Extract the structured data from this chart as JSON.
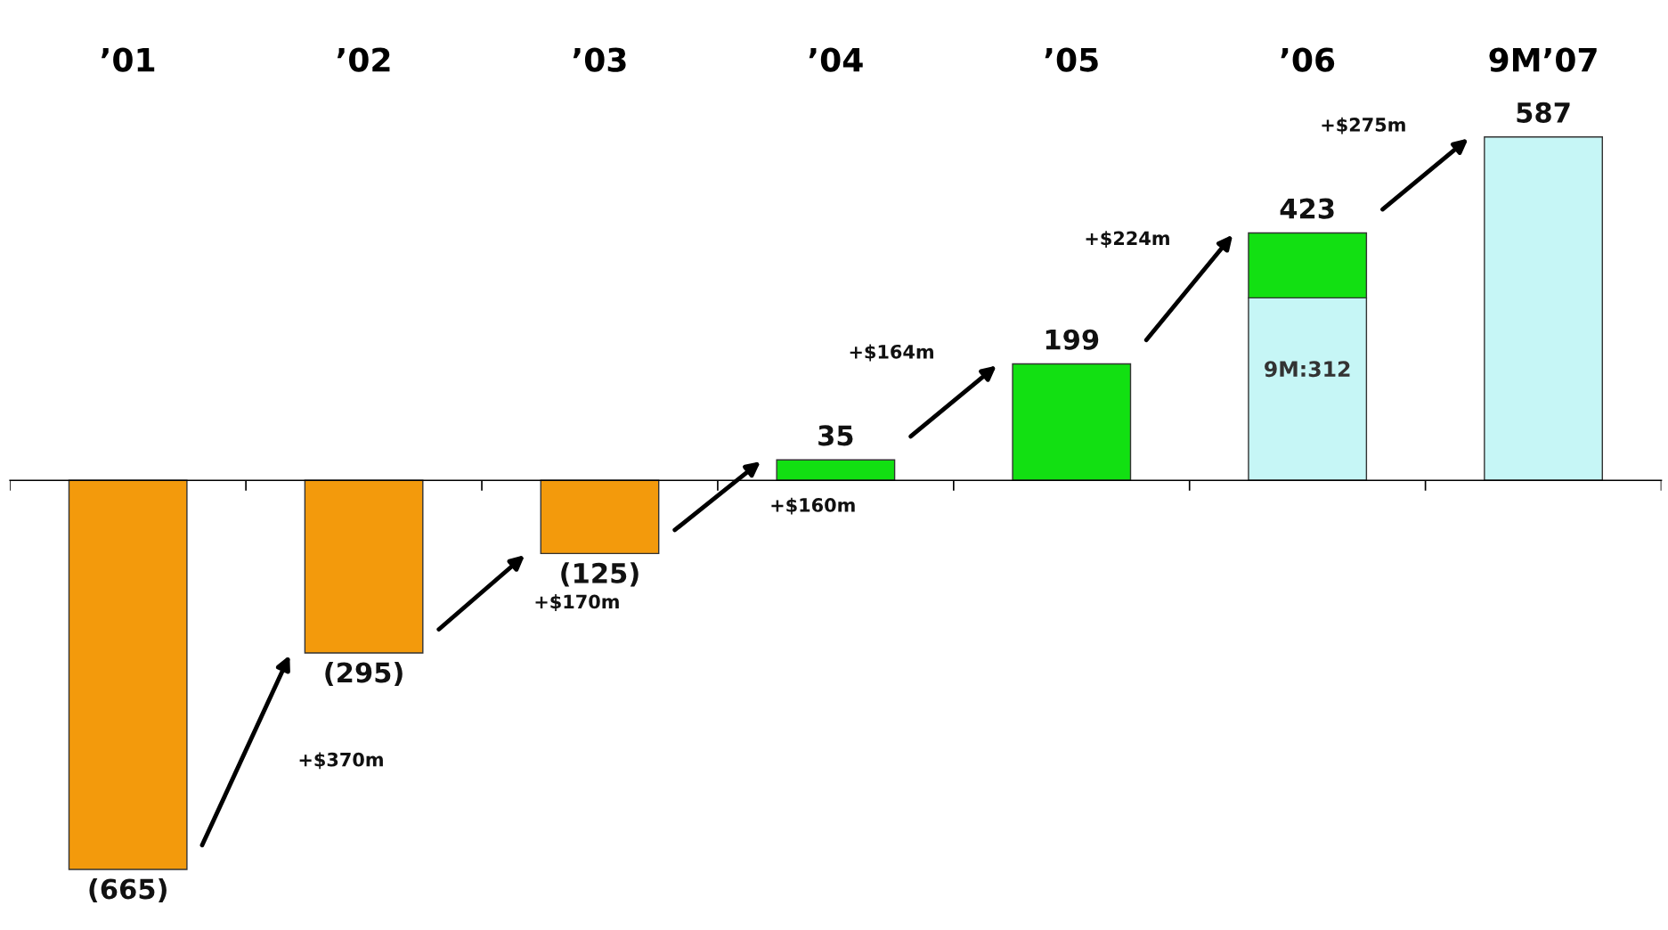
{
  "chart_data": {
    "type": "bar",
    "stacked": true,
    "categories": [
      "’01",
      "’02",
      "’03",
      "’04",
      "’05",
      "’06",
      "9M’07"
    ],
    "series": [
      {
        "colors": [
          "#f39a0c",
          "#f39a0c",
          "#f39a0c",
          "#12e012",
          "#12e012",
          "#c6f6f6",
          "#c6f6f6"
        ],
        "values": [
          -665,
          -295,
          -125,
          35,
          199,
          312,
          587
        ],
        "value_labels": [
          null,
          null,
          null,
          null,
          null,
          "9M:312",
          null
        ]
      },
      {
        "colors": [
          null,
          null,
          null,
          null,
          null,
          "#12e012",
          null
        ],
        "values": [
          null,
          null,
          null,
          null,
          null,
          111,
          null
        ]
      }
    ],
    "totals": [
      "(665)",
      "(295)",
      "(125)",
      "35",
      "199",
      "423",
      "587"
    ],
    "annotations": [
      "+$370m",
      "+$170m",
      "+$160m",
      "+$164m",
      "+$224m",
      "+$275m"
    ]
  }
}
